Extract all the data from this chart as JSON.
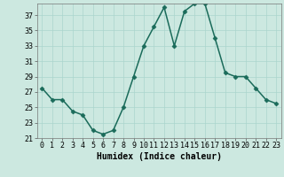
{
  "x": [
    0,
    1,
    2,
    3,
    4,
    5,
    6,
    7,
    8,
    9,
    10,
    11,
    12,
    13,
    14,
    15,
    16,
    17,
    18,
    19,
    20,
    21,
    22,
    23
  ],
  "y": [
    27.5,
    26.0,
    26.0,
    24.5,
    24.0,
    22.0,
    21.5,
    22.0,
    25.0,
    29.0,
    33.0,
    35.5,
    38.0,
    33.0,
    37.5,
    38.5,
    38.5,
    34.0,
    29.5,
    29.0,
    29.0,
    27.5,
    26.0,
    25.5
  ],
  "line_color": "#1a6b5a",
  "marker": "D",
  "marker_size": 2.5,
  "bg_color": "#cce8e0",
  "grid_color": "#aad4cc",
  "xlabel": "Humidex (Indice chaleur)",
  "xlim": [
    -0.5,
    23.5
  ],
  "ylim": [
    21,
    38.5
  ],
  "yticks": [
    21,
    23,
    25,
    27,
    29,
    31,
    33,
    35,
    37
  ],
  "xticks": [
    0,
    1,
    2,
    3,
    4,
    5,
    6,
    7,
    8,
    9,
    10,
    11,
    12,
    13,
    14,
    15,
    16,
    17,
    18,
    19,
    20,
    21,
    22,
    23
  ],
  "xlabel_fontsize": 7.0,
  "tick_fontsize": 6.0,
  "linewidth": 1.1
}
